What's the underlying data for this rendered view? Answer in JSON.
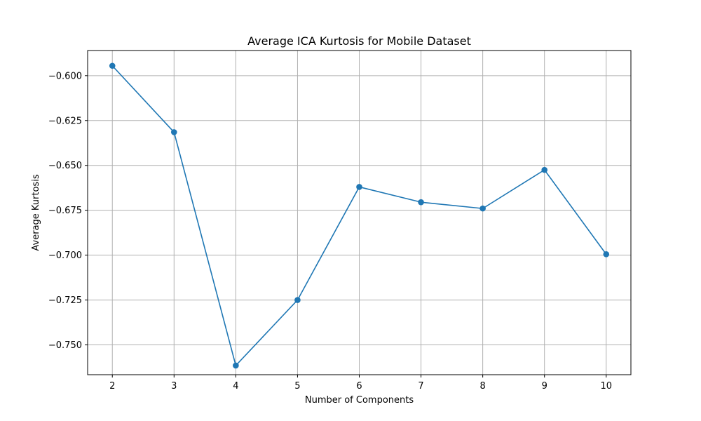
{
  "chart_data": {
    "type": "line",
    "title": "Average ICA Kurtosis for Mobile Dataset",
    "xlabel": "Number of Components",
    "ylabel": "Average Kurtosis",
    "x": [
      2,
      3,
      4,
      5,
      6,
      7,
      8,
      9,
      10
    ],
    "series": [
      {
        "name": "Average Kurtosis",
        "values": [
          -0.5945,
          -0.6315,
          -0.7615,
          -0.725,
          -0.662,
          -0.6705,
          -0.674,
          -0.6525,
          -0.6995
        ],
        "color": "#1f77b4",
        "marker": "circle"
      }
    ],
    "xticks": [
      "2",
      "3",
      "4",
      "5",
      "6",
      "7",
      "8",
      "9",
      "10"
    ],
    "yticks": [
      -0.6,
      -0.625,
      -0.65,
      -0.675,
      -0.7,
      -0.725,
      -0.75
    ],
    "ytick_labels": [
      "−0.600",
      "−0.625",
      "−0.650",
      "−0.675",
      "−0.700",
      "−0.725",
      "−0.750"
    ],
    "xlim": [
      1.6,
      10.4
    ],
    "ylim": [
      -0.7666,
      -0.586
    ],
    "grid": true
  }
}
